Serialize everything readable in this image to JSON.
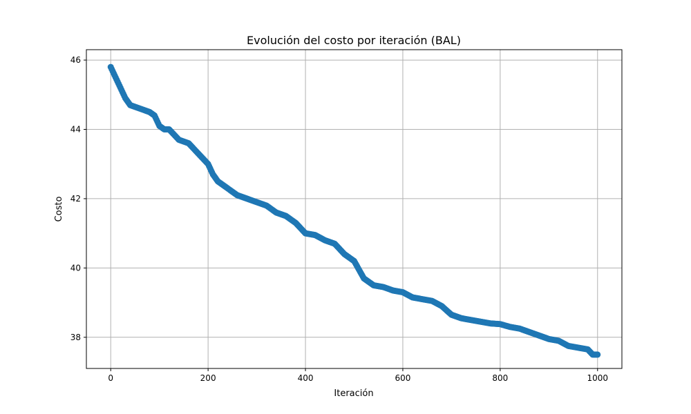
{
  "chart_data": {
    "type": "scatter",
    "title": "Evolución del costo por iteración (BAL)",
    "xlabel": "Iteración",
    "ylabel": "Costo",
    "xlim": [
      -50,
      1050
    ],
    "ylim": [
      37.1,
      46.3
    ],
    "xticks": [
      0,
      200,
      400,
      600,
      800,
      1000
    ],
    "yticks": [
      38,
      40,
      42,
      44,
      46
    ],
    "grid": true,
    "legend": "none",
    "color": "#1f77b4",
    "series": [
      {
        "x": [
          0,
          10,
          20,
          30,
          40,
          60,
          80,
          90,
          100,
          110,
          120,
          140,
          160,
          180,
          200,
          210,
          220,
          240,
          260,
          280,
          300,
          320,
          340,
          360,
          380,
          400,
          420,
          440,
          460,
          480,
          500,
          520,
          540,
          560,
          580,
          600,
          620,
          640,
          660,
          680,
          700,
          720,
          740,
          760,
          780,
          800,
          820,
          840,
          860,
          880,
          900,
          920,
          940,
          960,
          980,
          990,
          1000
        ],
        "y": [
          45.8,
          45.5,
          45.2,
          44.9,
          44.7,
          44.6,
          44.5,
          44.4,
          44.1,
          44.0,
          44.0,
          43.7,
          43.6,
          43.3,
          43.0,
          42.7,
          42.5,
          42.3,
          42.1,
          42.0,
          41.9,
          41.8,
          41.6,
          41.5,
          41.3,
          41.0,
          40.95,
          40.8,
          40.7,
          40.4,
          40.2,
          39.7,
          39.5,
          39.45,
          39.35,
          39.3,
          39.15,
          39.1,
          39.05,
          38.9,
          38.65,
          38.55,
          38.5,
          38.45,
          38.4,
          38.38,
          38.3,
          38.25,
          38.15,
          38.05,
          37.95,
          37.9,
          37.75,
          37.7,
          37.65,
          37.5,
          37.5
        ]
      }
    ]
  }
}
